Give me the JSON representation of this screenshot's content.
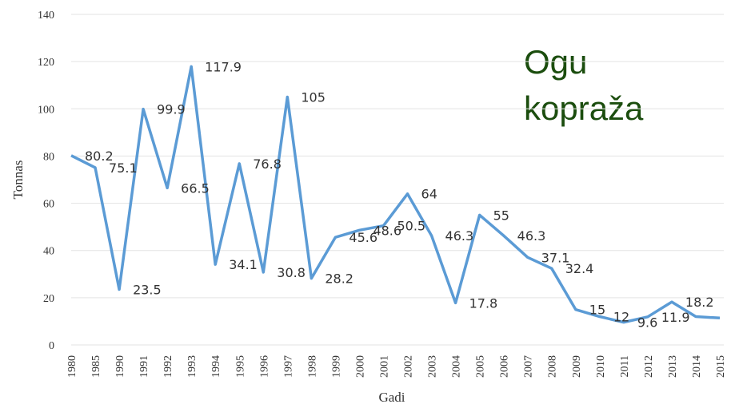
{
  "chart_data": {
    "type": "line",
    "annotation": [
      "Ogu",
      "kopraža"
    ],
    "x_label": "Gadi",
    "y_label": "Tonnas",
    "categories": [
      "1980",
      "1985",
      "1990",
      "1991",
      "1992",
      "1993",
      "1994",
      "1995",
      "1996",
      "1997",
      "1998",
      "1999",
      "2000",
      "2001",
      "2002",
      "2003",
      "2004",
      "2005",
      "2006",
      "2007",
      "2008",
      "2009",
      "2010",
      "2011",
      "2012",
      "2013",
      "2014",
      "2015"
    ],
    "series": [
      {
        "color": "#5b9bd5",
        "values": [
          80.2,
          75.1,
          23.5,
          99.9,
          66.5,
          117.9,
          34.1,
          76.8,
          30.8,
          105,
          28.2,
          45.6,
          48.6,
          50.5,
          64,
          46.3,
          17.8,
          55,
          46.3,
          37.1,
          32.4,
          15,
          12,
          9.6,
          11.9,
          18.2,
          12,
          11.4
        ],
        "value_labels": [
          "80.2",
          "75.1",
          "23.5",
          "99.9",
          "66.5",
          "117.9",
          "34.1",
          "76.8",
          "30.8",
          "105",
          "28.2",
          "45.6",
          "48.6",
          "50.5",
          "64",
          "46.3",
          "17.8",
          "55",
          "46.3",
          "37.1",
          "32.4",
          "15",
          "12",
          "9.6",
          "11.9",
          "18.2",
          null,
          "11.4"
        ]
      }
    ],
    "ylim": [
      0,
      140
    ],
    "yticks": [
      0,
      20,
      40,
      60,
      80,
      100,
      120,
      140
    ],
    "grid": true
  }
}
